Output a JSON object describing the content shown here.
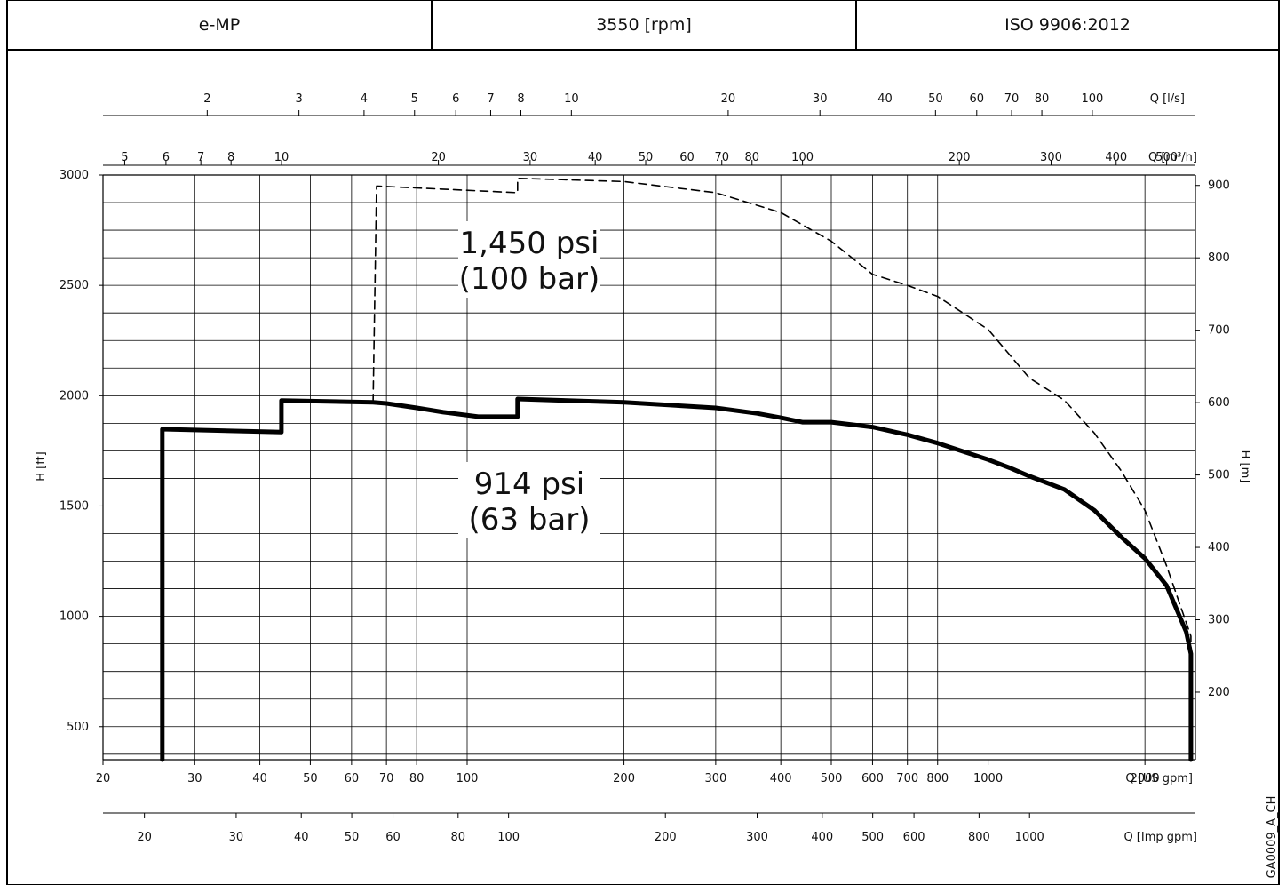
{
  "header": {
    "model": "e-MP",
    "speed": "3550 [rpm]",
    "standard": "ISO 9906:2012"
  },
  "drawing_code": "GA0009_A_CH",
  "colors": {
    "annotation": "#1b8bb0",
    "curve": "#000000",
    "grid": "#000000",
    "frame": "#000000"
  },
  "chart_data": {
    "type": "line",
    "title": "",
    "x_scale": "log",
    "y_scale": "linear",
    "grid": true,
    "xlim_us_gpm": [
      20,
      2500
    ],
    "axes": {
      "left": {
        "label": "H [ft]",
        "min": 350,
        "max": 3000,
        "ticks": [
          500,
          1000,
          1500,
          2000,
          2500,
          3000
        ]
      },
      "right": {
        "label": "H [m]",
        "ticks": [
          200,
          300,
          400,
          500,
          600,
          700,
          800,
          900
        ]
      },
      "bottom": {
        "label": "Q [US gpm]",
        "ticks": [
          20,
          30,
          40,
          50,
          60,
          70,
          80,
          100,
          200,
          300,
          400,
          500,
          600,
          700,
          800,
          1000,
          2000
        ],
        "tick_labels": [
          "20",
          "30",
          "40",
          "50",
          "60",
          "70",
          "80",
          "100",
          "200",
          "300",
          "400",
          "500",
          "600",
          "700",
          "800",
          "1000",
          "2000"
        ]
      },
      "imp_gpm": {
        "label": "Q [Imp gpm]",
        "tick_labels": [
          "20",
          "30",
          "40",
          "50",
          "60",
          "80",
          "100",
          "200",
          "300",
          "400",
          "500",
          "600",
          "800",
          "1000"
        ]
      },
      "m3h": {
        "label": "Q [m³/h]",
        "tick_labels": [
          "5",
          "6",
          "7",
          "8",
          "10",
          "20",
          "30",
          "40",
          "50",
          "60",
          "70",
          "80",
          "100",
          "200",
          "300",
          "400",
          "500"
        ]
      },
      "ls": {
        "label": "Q [l/s]",
        "tick_labels": [
          "2",
          "3",
          "4",
          "5",
          "6",
          "7",
          "8",
          "10",
          "20",
          "30",
          "40",
          "50",
          "60",
          "70",
          "80",
          "100"
        ]
      }
    },
    "series": [
      {
        "style": "solid",
        "label_line1": "914 psi",
        "label_line2": "(63 bar)",
        "x": [
          26,
          26,
          44,
          44,
          66,
          70,
          80,
          90,
          105,
          125,
          125,
          200,
          300,
          360,
          400,
          440,
          500,
          600,
          700,
          800,
          1000,
          1100,
          1200,
          1400,
          1600,
          1800,
          2000,
          2200,
          2400,
          2450,
          2450
        ],
        "y": [
          350,
          1848,
          1835,
          1978,
          1970,
          1965,
          1945,
          1925,
          1905,
          1905,
          1985,
          1970,
          1945,
          1920,
          1900,
          1880,
          1880,
          1858,
          1823,
          1785,
          1710,
          1673,
          1635,
          1575,
          1480,
          1360,
          1262,
          1140,
          930,
          830,
          350
        ]
      },
      {
        "style": "dashed",
        "label_line1": "1,450 psi",
        "label_line2": "(100 bar)",
        "x": [
          66,
          67,
          125,
          125,
          200,
          300,
          400,
          500,
          600,
          700,
          800,
          1000,
          1200,
          1400,
          1600,
          1800,
          2000,
          2200,
          2450,
          2450
        ],
        "y": [
          1970,
          2950,
          2920,
          2985,
          2970,
          2920,
          2830,
          2700,
          2550,
          2500,
          2450,
          2300,
          2080,
          1980,
          1830,
          1660,
          1480,
          1230,
          910,
          830
        ]
      }
    ]
  }
}
